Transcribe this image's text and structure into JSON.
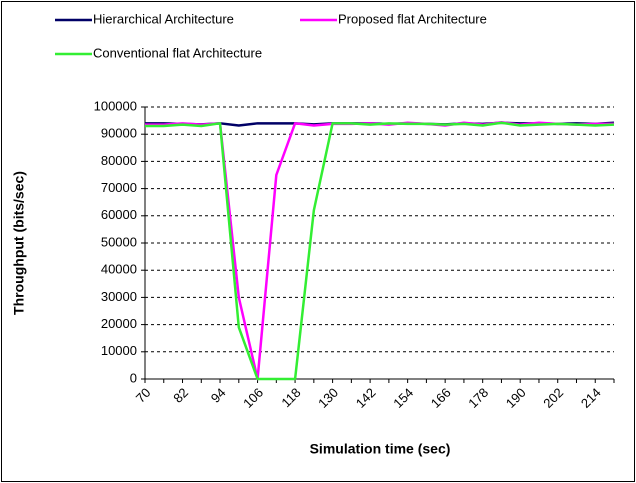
{
  "chart_data": {
    "type": "line",
    "x_label": "Simulation time (sec)",
    "y_label": "Throughput (bits/sec)",
    "categories": [
      "70",
      null,
      "82",
      null,
      "94",
      null,
      "106",
      null,
      "118",
      null,
      "130",
      null,
      "142",
      null,
      "154",
      null,
      "166",
      null,
      "178",
      null,
      "190",
      null,
      "202",
      null,
      "214",
      null
    ],
    "series": [
      {
        "name": "Hierarchical Architecture",
        "color": "#000066",
        "values": [
          94000,
          94000,
          93800,
          93600,
          94000,
          93200,
          94000,
          94000,
          94000,
          93600,
          94000,
          94000,
          94000,
          93800,
          94000,
          93800,
          93600,
          94000,
          93800,
          94200,
          94000,
          94000,
          93800,
          94000,
          93800,
          94200
        ]
      },
      {
        "name": "Proposed flat Architecture",
        "color": "#ff00ff",
        "values": [
          93500,
          93500,
          94000,
          93500,
          94000,
          30000,
          0,
          75000,
          94000,
          93200,
          93800,
          93800,
          94000,
          93500,
          94200,
          93800,
          93200,
          94200,
          93500,
          94400,
          93500,
          94200,
          93800,
          93500,
          93800,
          93800
        ]
      },
      {
        "name": "Conventional flat Architecture",
        "color": "#33ee33",
        "values": [
          93000,
          93000,
          93500,
          93000,
          94000,
          19000,
          0,
          0,
          0,
          62000,
          94000,
          94000,
          93500,
          94000,
          93800,
          93800,
          93500,
          93800,
          93200,
          94200,
          93200,
          93500,
          93800,
          93500,
          93200,
          93500
        ]
      }
    ],
    "ylim": [
      0,
      100000
    ],
    "yticks": [
      0,
      10000,
      20000,
      30000,
      40000,
      50000,
      60000,
      70000,
      80000,
      90000,
      100000
    ],
    "grid": true
  }
}
